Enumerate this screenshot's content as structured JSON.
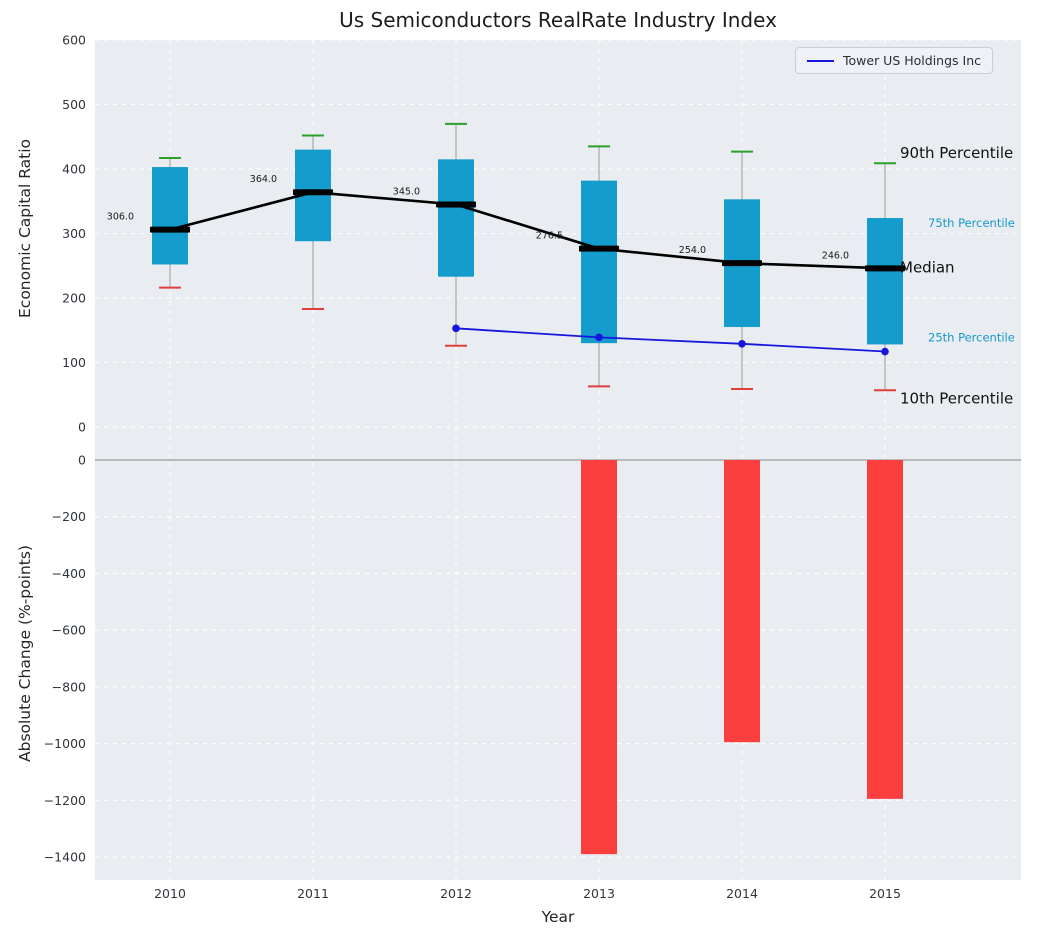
{
  "title": "Us Semiconductors RealRate Industry Index",
  "legend": {
    "label": "Tower US Holdings Inc"
  },
  "axes": {
    "top_ylabel": "Economic Capital Ratio",
    "bottom_ylabel": "Absolute Change (%-points)",
    "xlabel": "Year"
  },
  "colors": {
    "panel": "#e9edf1",
    "grid": "#ffffff",
    "box": "#149ccd",
    "median": "#000000",
    "whisker": "#999999",
    "cap_high": "#2aa12a",
    "cap_low": "#e23d3d",
    "tower": "#1616dd",
    "neg_bar": "#fb3e3e",
    "tick": "#30363c",
    "zero_line": "#9c9c9c",
    "percentile_label_small": "#1598ca",
    "annotation_dark": "#111111"
  },
  "chart_data": [
    {
      "type": "boxplot",
      "panel": "top",
      "title": "Us Semiconductors RealRate Industry Index",
      "ylabel": "Economic Capital Ratio",
      "ylim": [
        -30,
        600
      ],
      "yticks": [
        0,
        100,
        200,
        300,
        400,
        500,
        600
      ],
      "grid": true,
      "legend_position": "upper right",
      "categories": [
        "2010",
        "2011",
        "2012",
        "2013",
        "2014",
        "2015"
      ],
      "series": [
        {
          "name": "90th Percentile",
          "values": [
            417,
            452,
            470,
            435,
            427,
            409
          ]
        },
        {
          "name": "75th Percentile",
          "values": [
            403,
            430,
            415,
            382,
            353,
            324
          ]
        },
        {
          "name": "Median",
          "values": [
            306.0,
            364.0,
            345.0,
            276.5,
            254.0,
            246.0
          ]
        },
        {
          "name": "25th Percentile",
          "values": [
            252,
            288,
            233,
            130,
            155,
            128
          ]
        },
        {
          "name": "10th Percentile",
          "values": [
            216,
            183,
            126,
            63,
            59,
            57
          ]
        }
      ],
      "median_labels": [
        "306.0",
        "364.0",
        "345.0",
        "276.5",
        "254.0",
        "246.0"
      ],
      "tower_series": {
        "name": "Tower US Holdings Inc",
        "x": [
          "2012",
          "2013",
          "2014",
          "2015"
        ],
        "values": [
          153,
          139,
          129,
          117
        ]
      },
      "annotations": [
        {
          "label": "90th Percentile",
          "value": 425,
          "size": "large"
        },
        {
          "label": "75th Percentile",
          "value": 318,
          "size": "small"
        },
        {
          "label": "Median",
          "value": 247,
          "size": "large"
        },
        {
          "label": "25th Percentile",
          "value": 140,
          "size": "small"
        },
        {
          "label": "10th Percentile",
          "value": 44,
          "size": "large"
        }
      ]
    },
    {
      "type": "bar",
      "panel": "bottom",
      "ylabel": "Absolute Change (%-points)",
      "xlabel": "Year",
      "ylim": [
        -1480,
        50
      ],
      "yticks": [
        0,
        -200,
        -400,
        -600,
        -800,
        -1000,
        -1200,
        -1400
      ],
      "grid": true,
      "categories": [
        "2010",
        "2011",
        "2012",
        "2013",
        "2014",
        "2015"
      ],
      "values": [
        null,
        null,
        null,
        -1390,
        -995,
        -1195
      ]
    }
  ]
}
